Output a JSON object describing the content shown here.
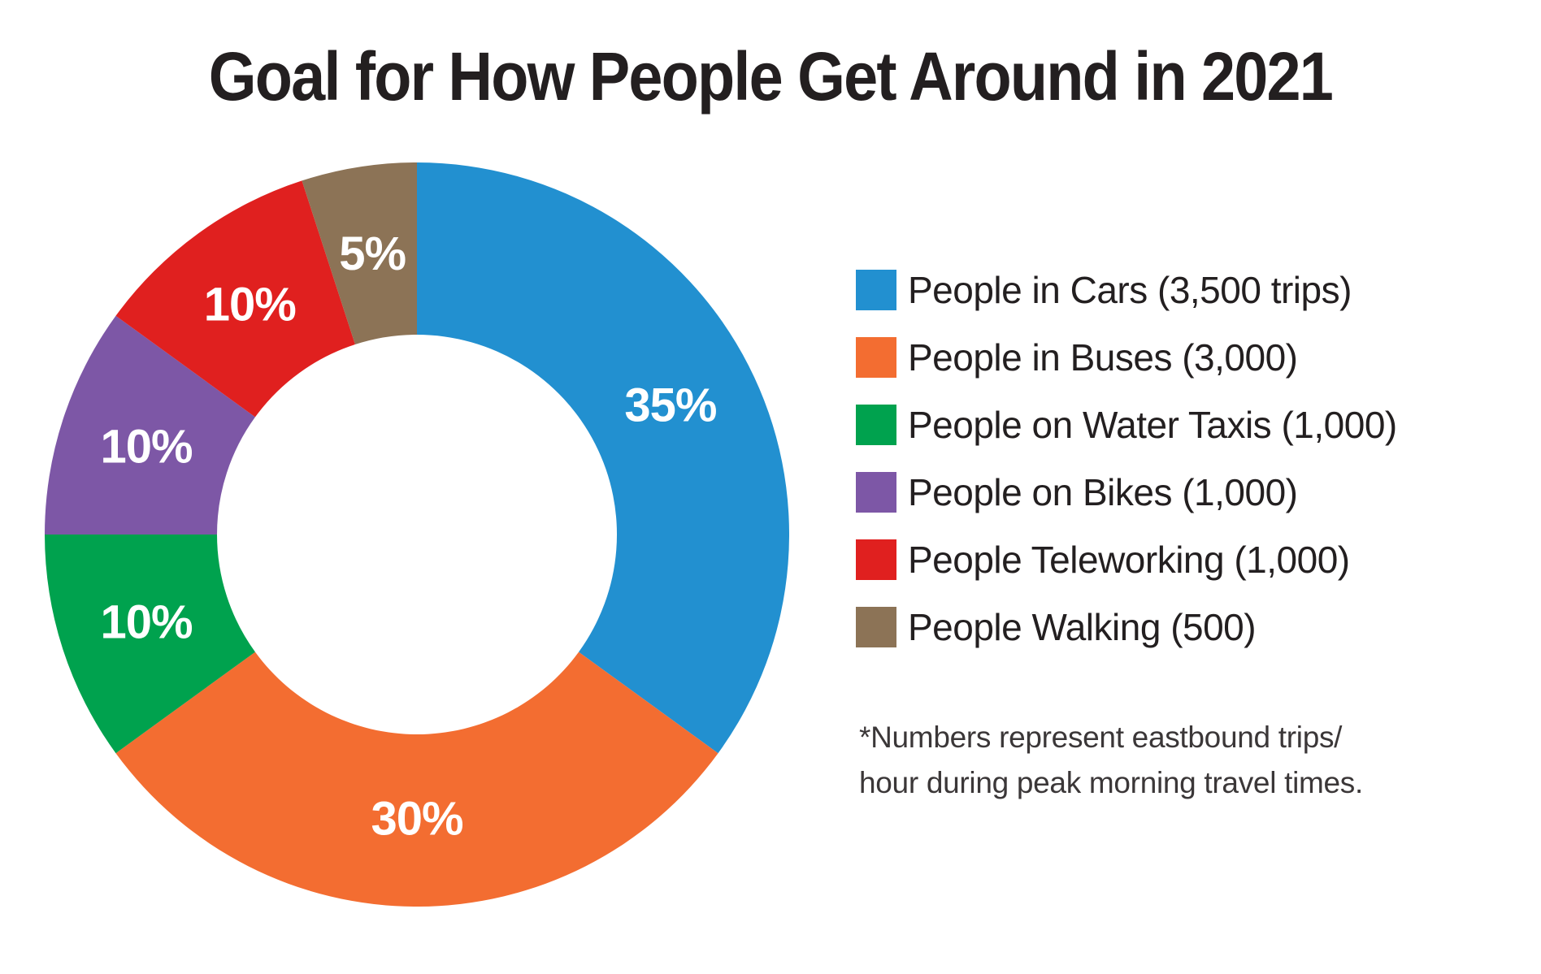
{
  "title": "Goal for How People Get Around in 2021",
  "footnote": {
    "line1": "*Numbers represent eastbound trips/",
    "line2": "hour during peak morning travel times."
  },
  "colors": {
    "background": "#ffffff",
    "title_text": "#231f20",
    "legend_text": "#231f20",
    "footnote_text": "#3b3738",
    "slice_label_text": "#ffffff"
  },
  "chart_data": {
    "type": "pie",
    "subtype": "donut",
    "title": "Goal for How People Get Around in 2021",
    "footnote": "*Numbers represent eastbound trips/hour during peak morning travel times.",
    "legend_position": "right",
    "start_angle_deg": 0,
    "direction": "clockwise",
    "donut_hole_ratio": 0.54,
    "segments": [
      {
        "label": "People in Cars (3,500 trips)",
        "category": "People in Cars",
        "trips_per_hour": 3500,
        "percent": 35,
        "slice_label": "35%",
        "color": "#2290d0"
      },
      {
        "label": "People in Buses (3,000)",
        "category": "People in Buses",
        "trips_per_hour": 3000,
        "percent": 30,
        "slice_label": "30%",
        "color": "#f36d31"
      },
      {
        "label": "People on Water Taxis (1,000)",
        "category": "People on Water Taxis",
        "trips_per_hour": 1000,
        "percent": 10,
        "slice_label": "10%",
        "color": "#00a24e"
      },
      {
        "label": "People on Bikes (1,000)",
        "category": "People on Bikes",
        "trips_per_hour": 1000,
        "percent": 10,
        "slice_label": "10%",
        "color": "#7d57a6"
      },
      {
        "label": "People Teleworking (1,000)",
        "category": "People Teleworking",
        "trips_per_hour": 1000,
        "percent": 10,
        "slice_label": "10%",
        "color": "#e0201f"
      },
      {
        "label": "People Walking (500)",
        "category": "People Walking",
        "trips_per_hour": 500,
        "percent": 5,
        "slice_label": "5%",
        "color": "#8c7356"
      }
    ]
  }
}
